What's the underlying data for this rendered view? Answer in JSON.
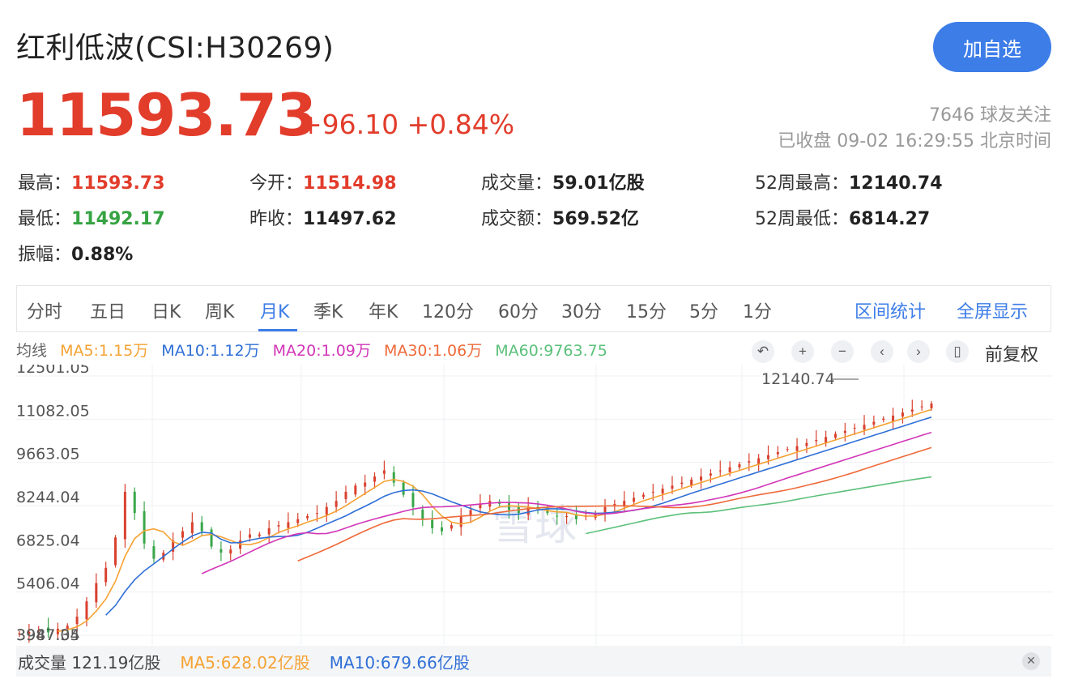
{
  "header": {
    "title": "红利低波(CSI:H30269)",
    "watch_label": "加自选",
    "price": "11593.73",
    "change": "+96.10 +0.84%",
    "followers": "7646 球友关注",
    "status": "已收盘 09-02 16:29:55 北京时间"
  },
  "stats": {
    "high_label": "最高：",
    "high": "11593.73",
    "open_label": "今开：",
    "open": "11514.98",
    "volume_label": "成交量：",
    "volume": "59.01亿股",
    "w52high_label": "52周最高：",
    "w52high": "12140.74",
    "low_label": "最低：",
    "low": "11492.17",
    "prevclose_label": "昨收：",
    "prevclose": "11497.62",
    "amount_label": "成交额：",
    "amount": "569.52亿",
    "w52low_label": "52周最低：",
    "w52low": "6814.27",
    "amplitude_label": "振幅：",
    "amplitude": "0.88%"
  },
  "periods": [
    "分时",
    "五日",
    "日K",
    "周K",
    "月K",
    "季K",
    "年K",
    "120分",
    "60分",
    "30分",
    "15分",
    "5分",
    "1分"
  ],
  "active_period": "月K",
  "tools": {
    "range_stats": "区间统计",
    "fullscreen": "全屏显示",
    "adjust": "前复权"
  },
  "ma": {
    "label": "均线",
    "ma5": "MA5:1.15万",
    "ma10": "MA10:1.12万",
    "ma20": "MA20:1.09万",
    "ma30": "MA30:1.06万",
    "ma60": "MA60:9763.75",
    "colors": {
      "ma5": "#f5a233",
      "ma10": "#2f6fd6",
      "ma20": "#d236b8",
      "ma30": "#ee6a3a",
      "ma60": "#5cc07a"
    }
  },
  "volume": {
    "label": "成交量 121.19亿股",
    "ma5": "MA5:628.02亿股",
    "ma10": "MA10:679.66亿股"
  },
  "chart_data": {
    "type": "candlestick",
    "y_ticks": [
      "12501.05",
      "11082.05",
      "9663.05",
      "8244.04",
      "6825.04",
      "5406.04",
      "3987.04"
    ],
    "y_min": 3987.04,
    "y_max": 12501.05,
    "high_annotation": "12140.74",
    "low_annotation": "3947.35",
    "watermark": "雪球",
    "closes": [
      4050,
      4100,
      4150,
      4080,
      4200,
      4300,
      4600,
      5100,
      5700,
      6200,
      7200,
      8700,
      8000,
      7000,
      6500,
      6700,
      7100,
      7400,
      7700,
      7400,
      6900,
      6700,
      6800,
      7100,
      7300,
      7300,
      7500,
      7600,
      7700,
      7800,
      7900,
      8000,
      8200,
      8400,
      8700,
      8900,
      9000,
      9200,
      9400,
      9000,
      8600,
      8200,
      7800,
      7500,
      7400,
      7600,
      7900,
      8100,
      8300,
      8400,
      8300,
      8100,
      8000,
      8200,
      8100,
      8000,
      7900,
      7900,
      7800,
      7900,
      8000,
      8200,
      8300,
      8400,
      8500,
      8600,
      8700,
      8800,
      8900,
      9000,
      9100,
      9200,
      9300,
      9400,
      9500,
      9600,
      9700,
      9800,
      9900,
      10000,
      10100,
      10200,
      10300,
      10400,
      10500,
      10600,
      10700,
      10800,
      10900,
      11000,
      11100,
      11200,
      11300,
      11400,
      11500,
      11593
    ]
  }
}
